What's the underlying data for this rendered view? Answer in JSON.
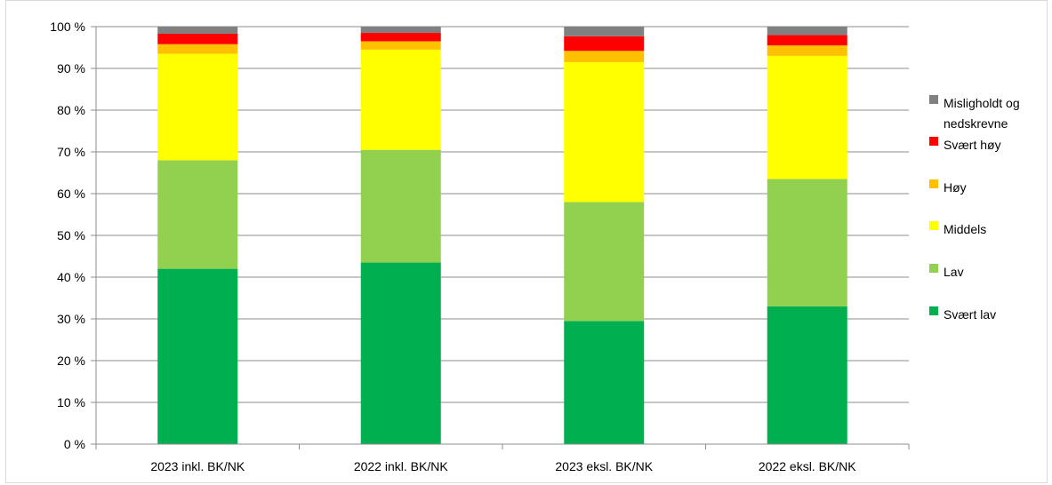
{
  "chart_data": {
    "type": "bar",
    "stacked": true,
    "categories": [
      "2023 inkl. BK/NK",
      "2022 inkl. BK/NK",
      "2023 eksl. BK/NK",
      "2022 eksl. BK/NK"
    ],
    "series": [
      {
        "name": "Svært lav",
        "color": "#00b050",
        "values": [
          42,
          43.5,
          29.5,
          33
        ]
      },
      {
        "name": "Lav",
        "color": "#92d050",
        "values": [
          26,
          27,
          28.5,
          30.5
        ]
      },
      {
        "name": "Middels",
        "color": "#ffff00",
        "values": [
          25.5,
          24,
          33.5,
          29.5
        ]
      },
      {
        "name": "Høy",
        "color": "#ffc000",
        "values": [
          2.3,
          2,
          2.7,
          2.5
        ]
      },
      {
        "name": "Svært høy",
        "color": "#ff0000",
        "values": [
          2.5,
          2,
          3.5,
          2.5
        ]
      },
      {
        "name": "Misligholdt og nedskrevne",
        "color": "#808080",
        "values": [
          1.7,
          1.5,
          2.3,
          2
        ]
      }
    ],
    "y_ticks": [
      "0 %",
      "10 %",
      "20 %",
      "30 %",
      "40 %",
      "50 %",
      "60 %",
      "70 %",
      "80 %",
      "90 %",
      "100 %"
    ],
    "ylim": [
      0,
      100
    ],
    "grid": true,
    "legend_position": "right"
  }
}
